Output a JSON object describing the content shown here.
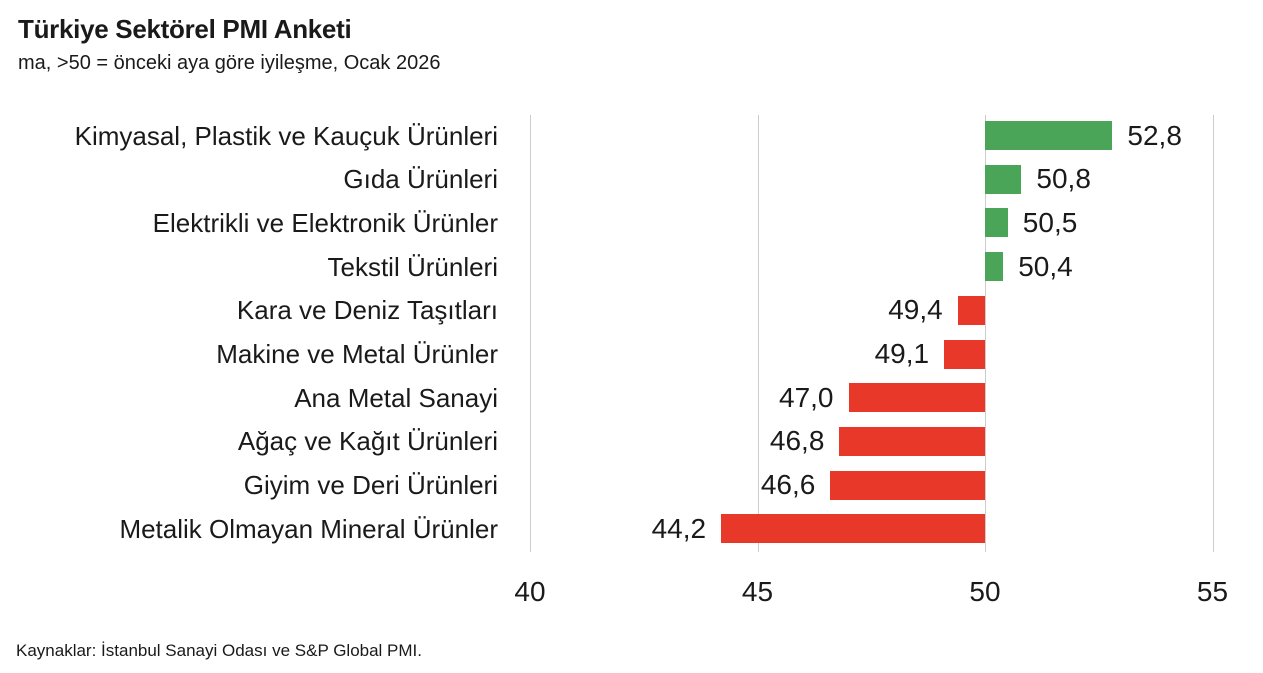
{
  "header": {
    "title": "Türkiye Sektörel PMI Anketi",
    "subtitle": "ma, >50 = önceki aya göre iyileşme, Ocak 2026"
  },
  "footer": {
    "source": "Kaynaklar: İstanbul Sanayi Odası ve S&P Global PMI."
  },
  "colors": {
    "above_baseline": "#4ba558",
    "below_baseline": "#e8382a",
    "gridline": "#cccccc",
    "text": "#1a1a1a"
  },
  "chart_data": {
    "type": "bar",
    "orientation": "horizontal",
    "title": "Türkiye Sektörel PMI Anketi",
    "subtitle": "ma, >50 = önceki aya göre iyileşme, Ocak 2026",
    "baseline": 50,
    "categories": [
      "Kimyasal, Plastik ve Kauçuk Ürünleri",
      "Gıda Ürünleri",
      "Elektrikli ve Elektronik Ürünler",
      "Tekstil Ürünleri",
      "Kara ve Deniz Taşıtları",
      "Makine ve Metal Ürünler",
      "Ana Metal Sanayi",
      "Ağaç ve Kağıt Ürünleri",
      "Giyim ve Deri Ürünleri",
      "Metalik Olmayan Mineral Ürünler"
    ],
    "values": [
      52.8,
      50.8,
      50.5,
      50.4,
      49.4,
      49.1,
      47.0,
      46.8,
      46.6,
      44.2
    ],
    "value_labels": [
      "52,8",
      "50,8",
      "50,5",
      "50,4",
      "49,4",
      "49,1",
      "47,0",
      "46,8",
      "46,6",
      "44,2"
    ],
    "xlabel": "",
    "ylabel": "",
    "xlim": [
      40,
      55.3
    ],
    "xticks": [
      40,
      45,
      50,
      55
    ],
    "xtick_labels": [
      "40",
      "45",
      "50",
      "55"
    ],
    "grid": true,
    "legend": false,
    "color_rule": "green if value >= 50 else red"
  }
}
